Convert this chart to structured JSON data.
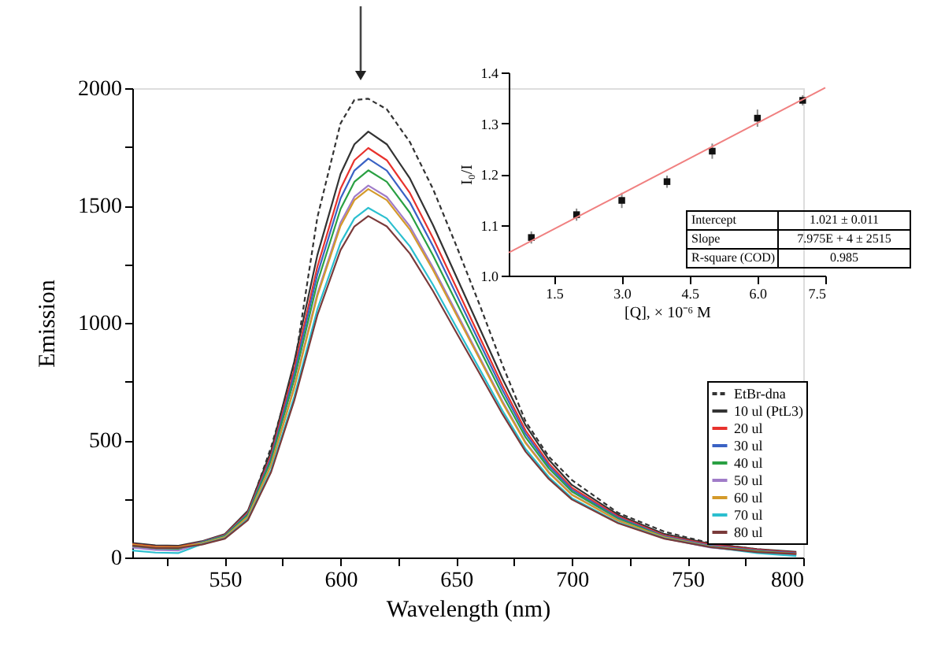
{
  "chart_data": [
    {
      "type": "line",
      "xlabel": "Wavelength (nm)",
      "ylabel": "Emission",
      "legend": "bottom right",
      "x": [
        510,
        520,
        530,
        540,
        550,
        560,
        570,
        580,
        590,
        600,
        606,
        612,
        620,
        630,
        640,
        650,
        660,
        670,
        680,
        690,
        700,
        720,
        740,
        760,
        780,
        797
      ],
      "xlim": [
        510,
        800
      ],
      "ylim": [
        0,
        2000
      ],
      "xticks": [
        {
          "value": 525,
          "label": null
        },
        550,
        {
          "value": 575,
          "label": null
        },
        600,
        {
          "value": 625,
          "label": null
        },
        650,
        {
          "value": 675,
          "label": null
        },
        700,
        {
          "value": 725,
          "label": null
        },
        750,
        {
          "value": 775,
          "label": null
        },
        800
      ],
      "yticks": [
        0,
        {
          "value": 250,
          "label": null
        },
        500,
        {
          "value": 750,
          "label": null
        },
        1000,
        {
          "value": 1250,
          "label": null
        },
        1500,
        {
          "value": 1750,
          "label": null
        },
        2000
      ],
      "series": [
        {
          "name": "EtBr-dna",
          "color": "#333333",
          "line_style": "dashed",
          "values": [
            45,
            40,
            40,
            55,
            90,
            190,
            470,
            810,
            1450,
            1850,
            1950,
            1955,
            1910,
            1770,
            1570,
            1330,
            1080,
            820,
            580,
            430,
            330,
            190,
            110,
            60,
            35,
            20
          ]
        },
        {
          "name": "10 ul (PtL3)",
          "color": "#333333",
          "values": [
            62,
            52,
            50,
            69,
            100,
            200,
            454,
            835,
            1289,
            1634,
            1761,
            1815,
            1761,
            1615,
            1416,
            1198,
            980,
            762,
            563,
            417,
            309,
            182,
            100,
            58,
            36,
            24
          ]
        },
        {
          "name": "20 ul",
          "color": "#e8322d",
          "values": [
            57,
            47,
            45,
            66,
            96,
            192,
            436,
            803,
            1239,
            1571,
            1693,
            1745,
            1693,
            1553,
            1361,
            1152,
            942,
            733,
            541,
            401,
            297,
            175,
            94,
            54,
            33,
            21
          ]
        },
        {
          "name": "30 ul",
          "color": "#3a62c4",
          "values": [
            52,
            42,
            40,
            65,
            94,
            187,
            425,
            782,
            1207,
            1530,
            1649,
            1700,
            1649,
            1513,
            1326,
            1122,
            918,
            714,
            527,
            391,
            289,
            170,
            90,
            50,
            30,
            18
          ]
        },
        {
          "name": "40 ul",
          "color": "#2aa043",
          "values": [
            47,
            37,
            35,
            63,
            91,
            182,
            413,
            759,
            1172,
            1485,
            1601,
            1650,
            1601,
            1469,
            1287,
            1089,
            891,
            693,
            512,
            380,
            281,
            165,
            86,
            46,
            27,
            15
          ]
        },
        {
          "name": "50 ul",
          "color": "#a07cc8",
          "values": [
            42,
            32,
            30,
            60,
            87,
            174,
            396,
            729,
            1125,
            1427,
            1537,
            1585,
            1537,
            1411,
            1236,
            1046,
            856,
            666,
            491,
            365,
            269,
            159,
            82,
            42,
            24,
            12
          ]
        },
        {
          "name": "60 ul",
          "color": "#d49a2a",
          "values": [
            55,
            44,
            44,
            60,
            86,
            173,
            393,
            722,
            1115,
            1413,
            1523,
            1570,
            1523,
            1397,
            1225,
            1036,
            848,
            659,
            487,
            361,
            267,
            157,
            86,
            47,
            25,
            16
          ]
        },
        {
          "name": "70 ul",
          "color": "#2bbfcf",
          "values": [
            30,
            21,
            19,
            57,
            82,
            164,
            373,
            685,
            1058,
            1341,
            1445,
            1490,
            1445,
            1326,
            1162,
            983,
            805,
            626,
            462,
            343,
            253,
            149,
            82,
            45,
            19,
            6
          ]
        },
        {
          "name": "80 ul",
          "color": "#7a3a3a",
          "values": [
            51,
            41,
            41,
            55,
            80,
            160,
            364,
            669,
            1033,
            1310,
            1411,
            1455,
            1411,
            1295,
            1135,
            960,
            786,
            611,
            451,
            335,
            247,
            146,
            80,
            44,
            23,
            15
          ]
        }
      ]
    },
    {
      "type": "scatter",
      "xlabel": "[Q], × 10⁻⁶ M",
      "ylabel": "I₀/I",
      "marker": "square",
      "xlim": [
        0.5,
        7.5
      ],
      "ylim": [
        1.0,
        1.4
      ],
      "xticks": [
        1.5,
        {
          "value": 3,
          "label": "3.0"
        },
        4.5,
        {
          "value": 6,
          "label": "6.0"
        },
        7.5
      ],
      "yticks": [
        {
          "value": 1,
          "label": "1.0"
        },
        1.1,
        1.2,
        1.3,
        1.4
      ],
      "series": [
        {
          "color": "#111111",
          "x": [
            1,
            2,
            3,
            4,
            5,
            6,
            7
          ],
          "values": [
            1.075,
            1.12,
            1.148,
            1.185,
            1.245,
            1.31,
            1.345
          ],
          "errors": [
            0.012,
            0.012,
            0.015,
            0.012,
            0.015,
            0.017,
            0.01
          ]
        },
        {
          "type": "line",
          "marker": "none",
          "color": "#f08080",
          "x": [
            0.5,
            7.5
          ],
          "values": [
            1.045,
            1.37
          ]
        }
      ],
      "annotations": [
        "Intercept",
        "1.021 ± 0.011",
        "Slope",
        "7.975E + 4 ± 2515",
        "R-square (COD)",
        "0.985"
      ]
    }
  ]
}
